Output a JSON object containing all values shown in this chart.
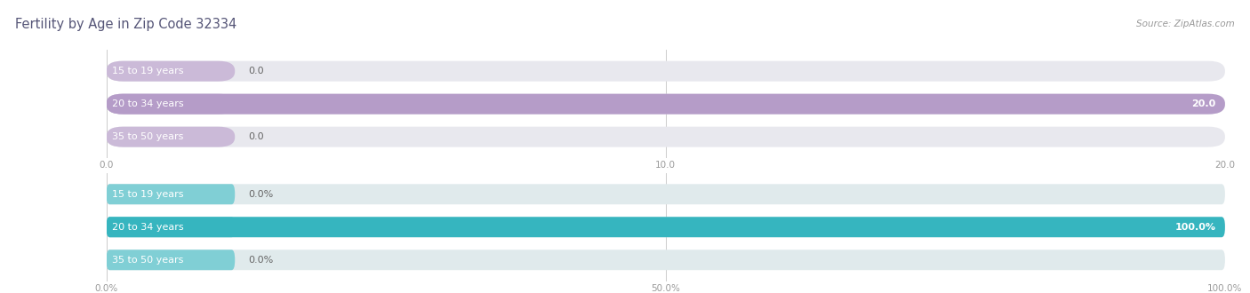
{
  "title": "Fertility by Age in Zip Code 32334",
  "source": "Source: ZipAtlas.com",
  "top_chart": {
    "categories": [
      "15 to 19 years",
      "20 to 34 years",
      "35 to 50 years"
    ],
    "values": [
      0.0,
      20.0,
      0.0
    ],
    "xlim": [
      0,
      20.0
    ],
    "xticks": [
      0.0,
      10.0,
      20.0
    ],
    "bar_color": "#b59cc8",
    "bar_color_small": "#cbbad8",
    "value_labels": [
      "0.0",
      "20.0",
      "0.0"
    ],
    "bar_bg_color": "#e8e8ee"
  },
  "bottom_chart": {
    "categories": [
      "15 to 19 years",
      "20 to 34 years",
      "35 to 50 years"
    ],
    "values": [
      0.0,
      100.0,
      0.0
    ],
    "xlim": [
      0,
      100.0
    ],
    "xticks": [
      0.0,
      50.0,
      100.0
    ],
    "bar_color": "#36b5bf",
    "bar_color_small": "#80cfd5",
    "value_labels": [
      "0.0%",
      "100.0%",
      "0.0%"
    ],
    "bar_bg_color": "#e0eaec"
  },
  "title_color": "#555577",
  "label_color": "#666666",
  "tick_color": "#999999",
  "source_color": "#999999",
  "bg_color": "#ffffff",
  "bar_height": 0.62,
  "label_fontsize": 8.0,
  "tick_fontsize": 7.5,
  "title_fontsize": 10.5,
  "grid_color": "#cccccc"
}
